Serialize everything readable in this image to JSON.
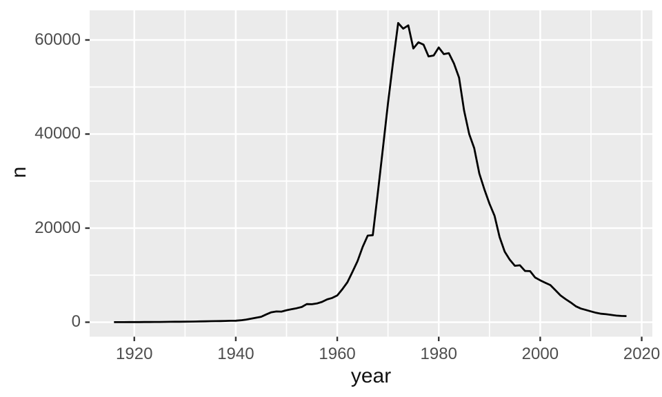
{
  "chart_data": {
    "type": "line",
    "title": "",
    "xlabel": "year",
    "ylabel": "n",
    "legend": "none",
    "grid": "on",
    "x_ticks": [
      1920,
      1940,
      1960,
      1980,
      2000,
      2020
    ],
    "y_ticks": [
      0,
      20000,
      40000,
      60000
    ],
    "x_minor_ticks": [
      1930,
      1950,
      1970,
      1990,
      2010
    ],
    "y_minor_ticks": [
      10000,
      30000,
      50000
    ],
    "xlim": [
      1911.2,
      2022.1
    ],
    "ylim": [
      -3080,
      66300
    ],
    "theme": {
      "outer_bg": "#ffffff",
      "panel_bg": "#ebebeb",
      "grid_color": "#ffffff",
      "line_color": "#000000",
      "axis_text_color": "#4d4d4d",
      "axis_title_color": "#111111",
      "tick_color": "#333333"
    },
    "series": [
      {
        "name": "n",
        "x": [
          1916,
          1917,
          1918,
          1919,
          1920,
          1921,
          1922,
          1923,
          1924,
          1925,
          1926,
          1927,
          1928,
          1929,
          1930,
          1931,
          1932,
          1933,
          1934,
          1935,
          1936,
          1937,
          1938,
          1939,
          1940,
          1941,
          1942,
          1943,
          1944,
          1945,
          1946,
          1947,
          1948,
          1949,
          1950,
          1951,
          1952,
          1953,
          1954,
          1955,
          1956,
          1957,
          1958,
          1959,
          1960,
          1961,
          1962,
          1963,
          1964,
          1965,
          1966,
          1967,
          1968,
          1969,
          1970,
          1971,
          1972,
          1973,
          1974,
          1975,
          1976,
          1977,
          1978,
          1979,
          1980,
          1981,
          1982,
          1983,
          1984,
          1985,
          1986,
          1987,
          1988,
          1989,
          1990,
          1991,
          1992,
          1993,
          1994,
          1995,
          1996,
          1997,
          1998,
          1999,
          2000,
          2001,
          2002,
          2003,
          2004,
          2005,
          2006,
          2007,
          2008,
          2009,
          2010,
          2011,
          2012,
          2013,
          2014,
          2015,
          2016,
          2017
        ],
        "y": [
          5,
          10,
          15,
          20,
          25,
          30,
          35,
          40,
          50,
          60,
          70,
          80,
          95,
          105,
          120,
          135,
          150,
          170,
          190,
          210,
          230,
          250,
          275,
          300,
          320,
          400,
          550,
          750,
          950,
          1150,
          1650,
          2100,
          2280,
          2250,
          2550,
          2760,
          2970,
          3240,
          3850,
          3820,
          3980,
          4320,
          4850,
          5150,
          5700,
          7000,
          8500,
          10700,
          13000,
          16000,
          18400,
          18500,
          27500,
          37000,
          46500,
          55300,
          63600,
          62400,
          63100,
          58200,
          59500,
          59000,
          56500,
          56700,
          58400,
          57000,
          57200,
          55000,
          52000,
          45000,
          40000,
          37000,
          31600,
          28200,
          25200,
          22600,
          18100,
          15000,
          13300,
          12000,
          12100,
          10900,
          10850,
          9500,
          8900,
          8400,
          7900,
          6800,
          5700,
          4900,
          4200,
          3400,
          2900,
          2600,
          2300,
          2000,
          1800,
          1700,
          1550,
          1400,
          1330,
          1300
        ]
      }
    ]
  }
}
